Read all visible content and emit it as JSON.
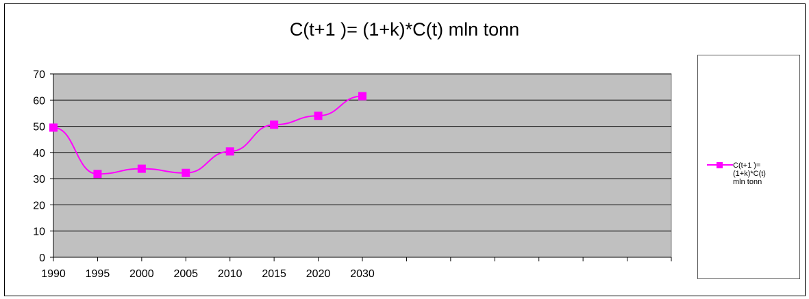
{
  "colors": {
    "plot_bg": "#c0c0c0",
    "series": "#ff00ff",
    "grid": "#000000"
  },
  "chart_data": {
    "type": "line",
    "title": "C(t+1 )= (1+k)*C(t) mln tonn",
    "x_categories": [
      "1990",
      "1995",
      "2000",
      "2005",
      "2010",
      "2015",
      "2020",
      "2030",
      "",
      "",
      "",
      "",
      "",
      "",
      ""
    ],
    "ylim": [
      0,
      70
    ],
    "yticks": [
      0,
      10,
      20,
      30,
      40,
      50,
      60,
      70
    ],
    "grid": true,
    "legend_position": "right",
    "series": [
      {
        "name": "C(t+1 )= (1+k)*C(t) mln tonn",
        "x": [
          "1990",
          "1995",
          "2000",
          "2005",
          "2010",
          "2015",
          "2020",
          "2030"
        ],
        "values": [
          49.5,
          31.8,
          33.8,
          32.2,
          40.4,
          50.6,
          54.0,
          61.5
        ]
      }
    ]
  },
  "legend": {
    "label": "C(t+1 )=\n(1+k)*C(t)\nmln tonn"
  }
}
